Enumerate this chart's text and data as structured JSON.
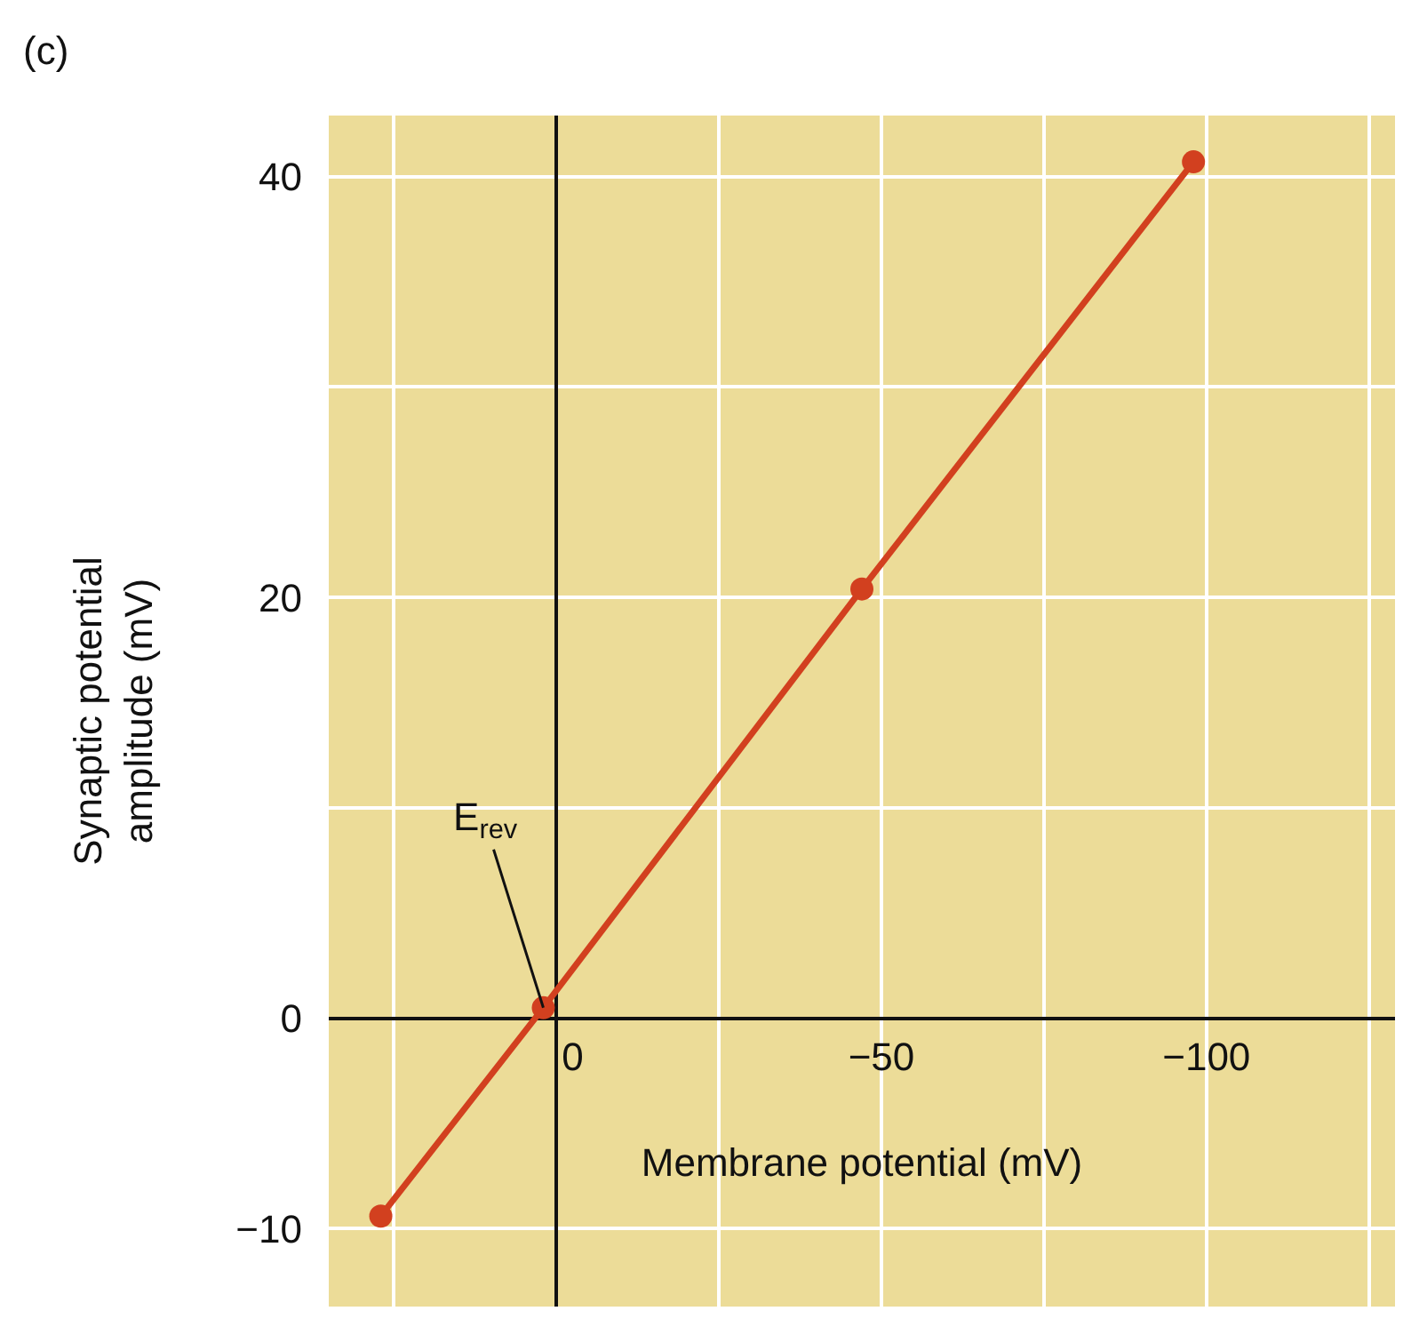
{
  "chart_data": {
    "type": "line",
    "xlabel": "Membrane potential (mV)",
    "ylabel": "Synaptic potential\namplitude (mV)",
    "x": [
      27,
      2,
      -47,
      -98
    ],
    "series": [
      {
        "color": "#d2401f",
        "values": [
          -9.4,
          0.5,
          20.4,
          40.7
        ]
      }
    ],
    "xlim": [
      35,
      -129
    ],
    "ylim": [
      -13.7,
      42.9
    ],
    "xticks": [
      {
        "value": 25,
        "label": null
      },
      0,
      {
        "value": -25,
        "label": null
      },
      {
        "value": -50,
        "label": "−50"
      },
      {
        "value": -75,
        "label": null
      },
      {
        "value": -100,
        "label": "−100"
      },
      {
        "value": -125,
        "label": null
      }
    ],
    "yticks": [
      {
        "value": -10,
        "label": "−10"
      },
      0,
      {
        "value": 10,
        "label": null
      },
      20,
      {
        "value": 30,
        "label": null
      },
      40
    ],
    "grid": true,
    "marker": "circle",
    "line_style": "solid",
    "annotations": [
      "(c)",
      {
        "text": "E$_{rev}$",
        "x": 2,
        "y": 0.5
      }
    ]
  }
}
